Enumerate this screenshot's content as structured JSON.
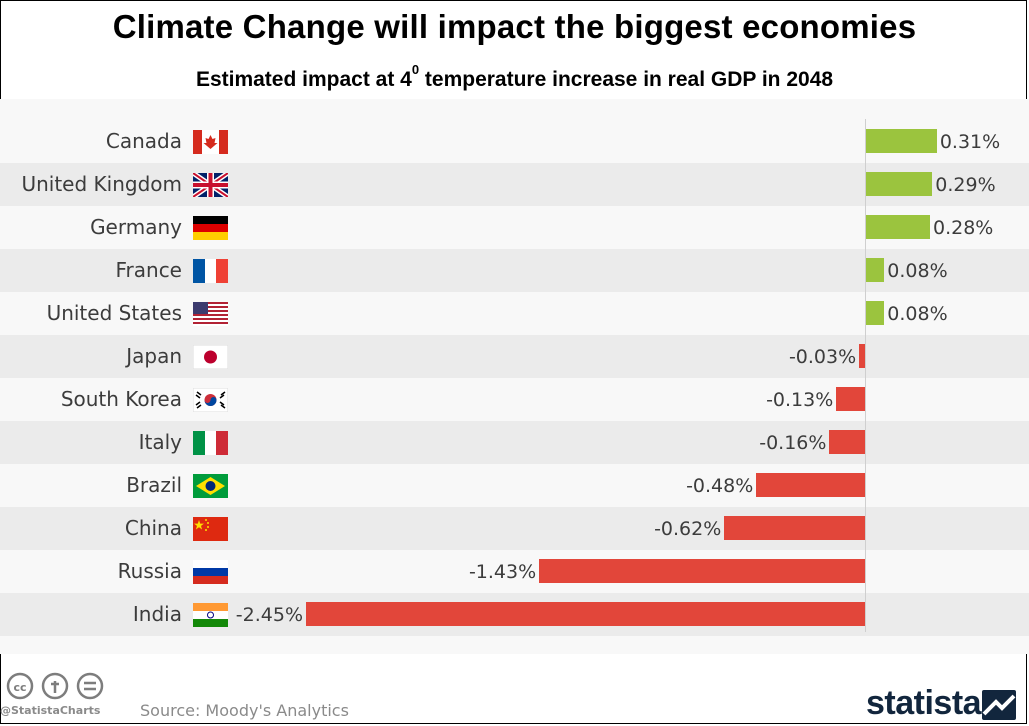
{
  "header": {
    "title": "Climate Change will impact the biggest economies",
    "subtitle_before": "Estimated impact at 4",
    "subtitle_sup": "0",
    "subtitle_after": " temperature increase in real GDP in 2048"
  },
  "chart_data": {
    "type": "bar",
    "orientation": "horizontal",
    "categories": [
      "Canada",
      "United Kingdom",
      "Germany",
      "France",
      "United States",
      "Japan",
      "South Korea",
      "Italy",
      "Brazil",
      "China",
      "Russia",
      "India"
    ],
    "values": [
      0.31,
      0.29,
      0.28,
      0.08,
      0.08,
      -0.03,
      -0.13,
      -0.16,
      -0.48,
      -0.62,
      -1.43,
      -2.45
    ],
    "value_labels": [
      "0.31%",
      "0.29%",
      "0.28%",
      "0.08%",
      "0.08%",
      "-0.03%",
      "-0.13%",
      "-0.16%",
      "-0.48%",
      "-0.62%",
      "-1.43%",
      "-2.45%"
    ],
    "xlim": [
      -2.45,
      0.31
    ],
    "grid": false,
    "colors": {
      "positive": "#9bc43e",
      "negative": "#e2463a"
    }
  },
  "flags": [
    "canada-flag-icon",
    "uk-flag-icon",
    "germany-flag-icon",
    "france-flag-icon",
    "usa-flag-icon",
    "japan-flag-icon",
    "south-korea-flag-icon",
    "italy-flag-icon",
    "brazil-flag-icon",
    "china-flag-icon",
    "russia-flag-icon",
    "india-flag-icon"
  ],
  "footer": {
    "handle": "@StatistaCharts",
    "source": "Source: Moody's Analytics",
    "brand": "statista"
  }
}
